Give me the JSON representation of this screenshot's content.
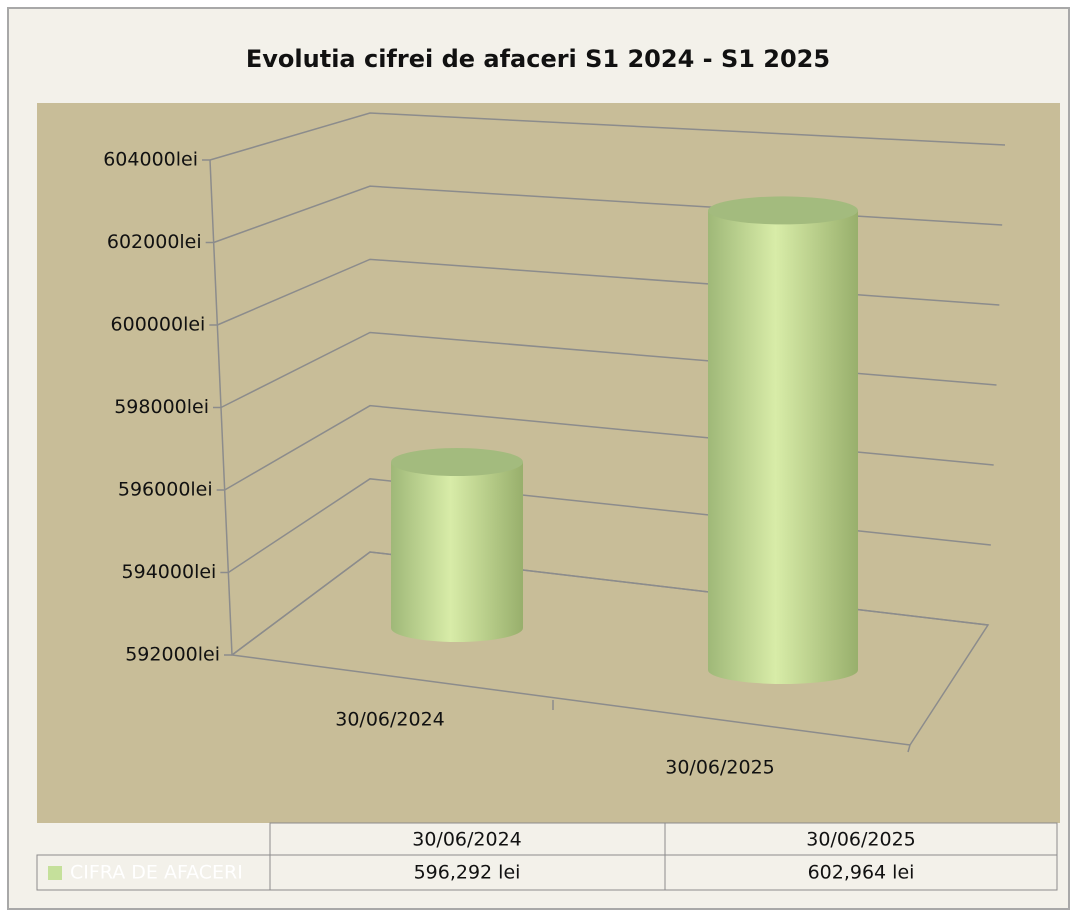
{
  "chart_data": {
    "type": "cylinder",
    "title": "Evolutia cifrei de afaceri S1 2024 - S1 2025",
    "categories": [
      "30/06/2024",
      "30/06/2025"
    ],
    "series": [
      {
        "name": "CIFRA DE AFACERI",
        "color": "#c5e09b",
        "values": [
          596292,
          602964
        ],
        "value_labels": [
          "596,292 lei",
          "602,964 lei"
        ]
      }
    ],
    "ylim": [
      592000,
      604000
    ],
    "yticks": [
      {
        "value": 592000,
        "label": "592000lei"
      },
      {
        "value": 594000,
        "label": "594000lei"
      },
      {
        "value": 596000,
        "label": "596000lei"
      },
      {
        "value": 598000,
        "label": "598000lei"
      },
      {
        "value": 600000,
        "label": "600000lei"
      },
      {
        "value": 602000,
        "label": "602000lei"
      },
      {
        "value": 604000,
        "label": "604000lei"
      }
    ],
    "grid": true,
    "data_table": true
  }
}
